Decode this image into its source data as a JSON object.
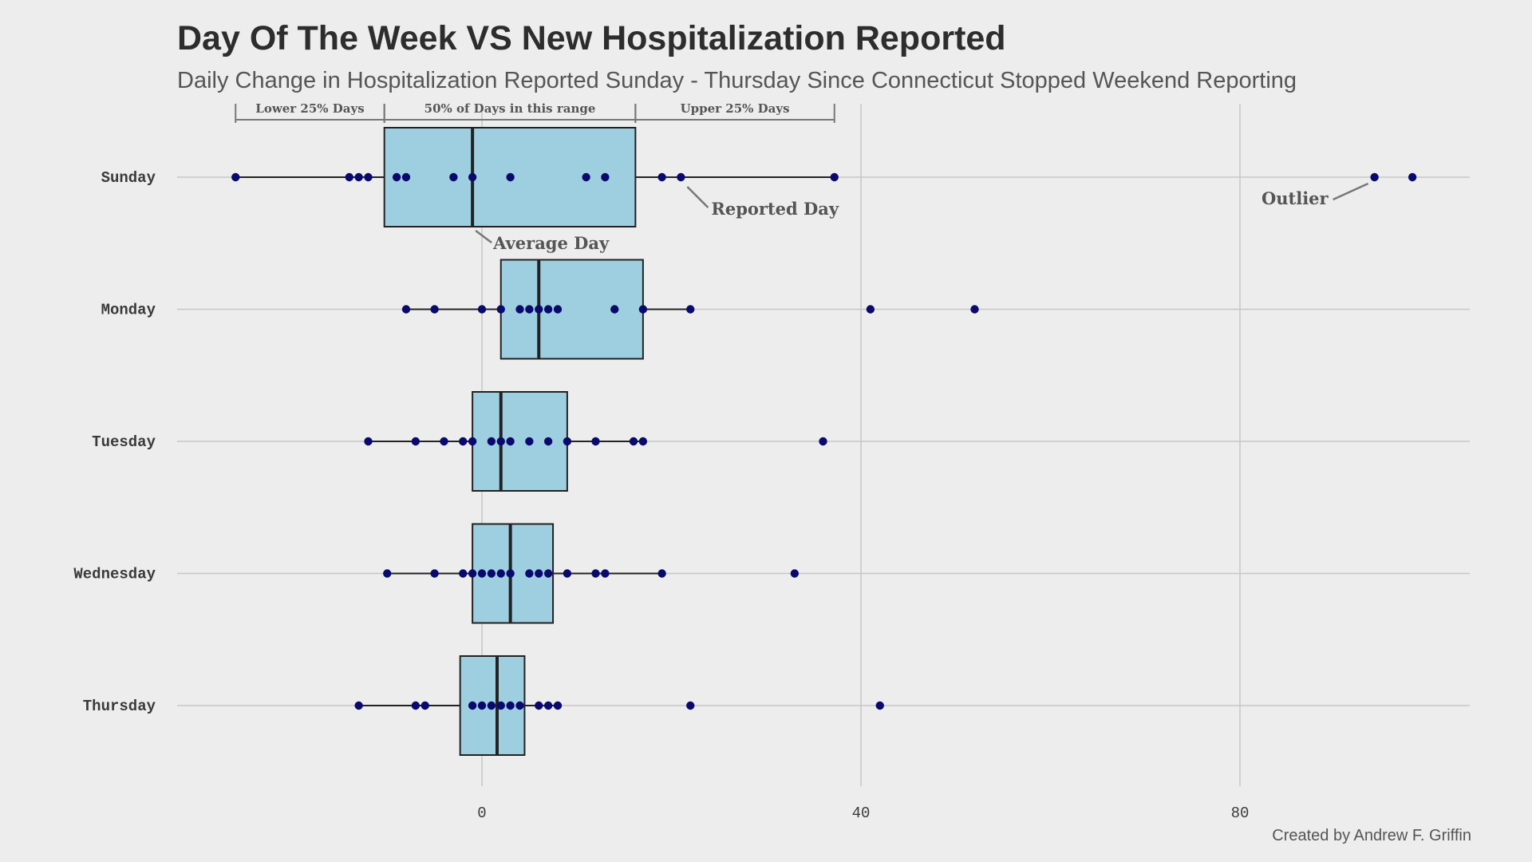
{
  "title": "Day Of The Week VS New Hospitalization Reported",
  "subtitle": "Daily Change in Hospitalization Reported Sunday - Thursday Since Connecticut Stopped Weekend Reporting",
  "caption": "Created by Andrew F. Griffin",
  "colors": {
    "background": "#ededed",
    "box_fill": "#9ecfe0",
    "box_stroke": "#222222",
    "point": "#0a0a6e",
    "grid": "#c6c6c6",
    "annotation": "#555555"
  },
  "chart_data": {
    "type": "box",
    "orientation": "horizontal",
    "title": "Day Of The Week VS New Hospitalization Reported",
    "subtitle": "Daily Change in Hospitalization Reported Sunday - Thursday Since Connecticut Stopped Weekend Reporting",
    "xlabel": "",
    "ylabel": "",
    "xlim": [
      -32,
      105
    ],
    "x_ticks": [
      0,
      40,
      80
    ],
    "x_tick_labels": [
      "0",
      "40",
      "80"
    ],
    "grid": true,
    "legend": "none",
    "categories": [
      "Sunday",
      "Monday",
      "Tuesday",
      "Wednesday",
      "Thursday"
    ],
    "series": [
      {
        "category": "Sunday",
        "whisker_low": -26,
        "q1": -10.3,
        "median": -1,
        "q3": 16.2,
        "whisker_high": 37.2,
        "points": [
          -26,
          -14,
          -13,
          -12,
          -9,
          -8,
          -3,
          -1,
          3,
          11,
          13,
          19,
          21,
          37.2,
          94.2,
          98.2
        ]
      },
      {
        "category": "Monday",
        "whisker_low": -8,
        "q1": 2,
        "median": 6,
        "q3": 17,
        "whisker_high": 22,
        "points": [
          -8,
          -5,
          0,
          2,
          4,
          5,
          6,
          7,
          8,
          14,
          17,
          22,
          41,
          52
        ]
      },
      {
        "category": "Tuesday",
        "whisker_low": -12,
        "q1": -1,
        "median": 2,
        "q3": 9,
        "whisker_high": 17,
        "points": [
          -12,
          -7,
          -4,
          -2,
          -1,
          1,
          2,
          3,
          5,
          7,
          9,
          12,
          16,
          17,
          36
        ]
      },
      {
        "category": "Wednesday",
        "whisker_low": -10,
        "q1": -1,
        "median": 3,
        "q3": 7.5,
        "whisker_high": 19,
        "points": [
          -10,
          -5,
          -2,
          -1,
          0,
          1,
          2,
          3,
          5,
          6,
          7,
          9,
          12,
          13,
          19,
          33
        ]
      },
      {
        "category": "Thursday",
        "whisker_low": -13,
        "q1": -2.3,
        "median": 1.6,
        "q3": 4.5,
        "whisker_high": 8,
        "points": [
          -13,
          -7,
          -6,
          -1,
          0,
          1,
          2,
          3,
          4,
          6,
          7,
          8,
          22,
          42
        ]
      }
    ],
    "range_labels": [
      {
        "label": "Lower 25% Days",
        "from": -26,
        "to": -10.3
      },
      {
        "label": "50% of Days in this range",
        "from": -10.3,
        "to": 16.2
      },
      {
        "label": "Upper 25% Days",
        "from": 16.2,
        "to": 37.2
      }
    ],
    "annotations": [
      {
        "label": "Reported Day",
        "category": "Sunday",
        "x": 21
      },
      {
        "label": "Average Day",
        "category": "Sunday",
        "x": -1
      },
      {
        "label": "Outlier",
        "category": "Sunday",
        "x": 94.2
      }
    ]
  }
}
